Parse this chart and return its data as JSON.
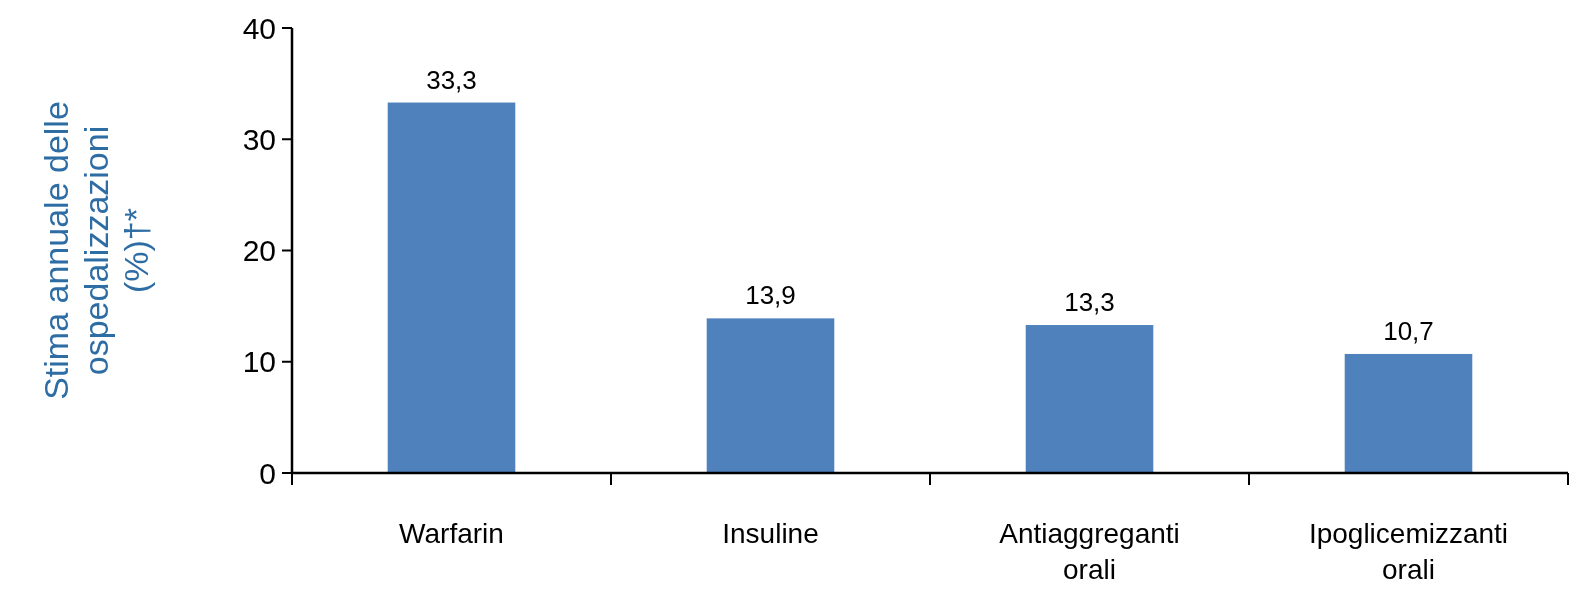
{
  "chart_data": {
    "type": "bar",
    "ylabel": "Stima annuale delle ospedalizzazioni (%)†*",
    "categories": [
      "Warfarin",
      "Insuline",
      "Antiaggreganti orali",
      "Ipoglicemizzanti orali"
    ],
    "values": [
      33.3,
      13.9,
      13.3,
      10.7
    ],
    "value_labels": [
      "33,3",
      "13,9",
      "13,3",
      "10,7"
    ],
    "color": "#4f81bd",
    "ylim": [
      0,
      40
    ],
    "yticks": [
      0,
      10,
      20,
      30,
      40
    ],
    "grid": false
  }
}
